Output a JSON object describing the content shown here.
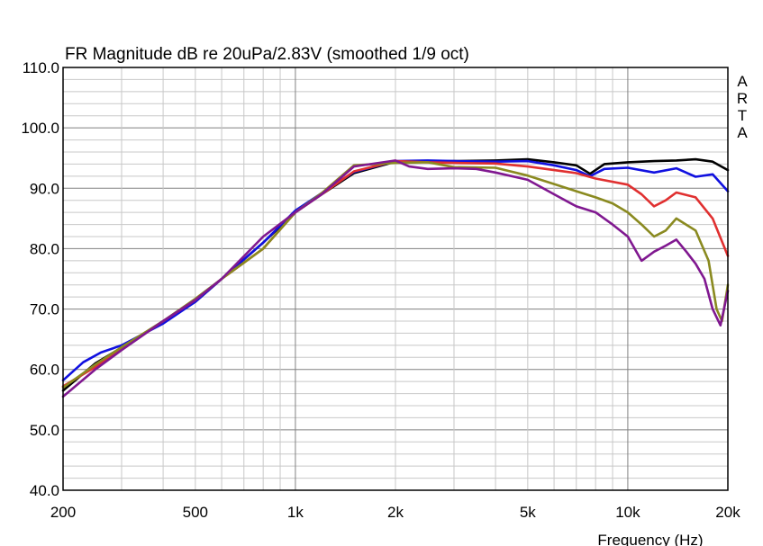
{
  "chart_data": {
    "type": "line",
    "title": "FR Magnitude dB re 20uPa/2.83V (smoothed 1/9 oct)",
    "xlabel": "Frequency (Hz)",
    "ylabel": "",
    "brand": [
      "A",
      "R",
      "T",
      "A"
    ],
    "x_scale": "log",
    "xlim": [
      200,
      20000
    ],
    "ylim": [
      40,
      110
    ],
    "grid": true,
    "legend": "none",
    "x_ticks": [
      {
        "value": 200,
        "label": "200"
      },
      {
        "value": 500,
        "label": "500"
      },
      {
        "value": 1000,
        "label": "1k"
      },
      {
        "value": 2000,
        "label": "2k"
      },
      {
        "value": 5000,
        "label": "5k"
      },
      {
        "value": 10000,
        "label": "10k"
      },
      {
        "value": 20000,
        "label": "20k"
      }
    ],
    "y_ticks": [
      {
        "value": 40,
        "label": "40.0"
      },
      {
        "value": 50,
        "label": "50.0"
      },
      {
        "value": 60,
        "label": "60.0"
      },
      {
        "value": 70,
        "label": "70.0"
      },
      {
        "value": 80,
        "label": "80.0"
      },
      {
        "value": 90,
        "label": "90.0"
      },
      {
        "value": 100,
        "label": "100.0"
      },
      {
        "value": 110,
        "label": "110.0"
      }
    ],
    "series": [
      {
        "color": "#000000",
        "x": [
          200,
          250,
          300,
          400,
          500,
          600,
          800,
          1000,
          1200,
          1500,
          2000,
          2500,
          3000,
          4000,
          5000,
          6000,
          7000,
          7700,
          8500,
          10000,
          12000,
          14000,
          16000,
          18000,
          20000
        ],
        "y": [
          56.5,
          61,
          63.6,
          68,
          71.2,
          75,
          81,
          86,
          89,
          92.5,
          94.4,
          94.4,
          94.5,
          94.6,
          94.8,
          94.3,
          93.8,
          92.4,
          94,
          94.3,
          94.5,
          94.6,
          94.8,
          94.4,
          93
        ]
      },
      {
        "color": "#1010e0",
        "x": [
          200,
          230,
          260,
          300,
          400,
          500,
          600,
          800,
          1000,
          1200,
          1500,
          2000,
          2500,
          3000,
          4000,
          5000,
          6000,
          7000,
          7700,
          8500,
          10000,
          12000,
          14000,
          16000,
          18000,
          20000
        ],
        "y": [
          58.2,
          61.2,
          62.8,
          64,
          67.6,
          71.2,
          75,
          81,
          86.3,
          89.2,
          92.7,
          94.5,
          94.6,
          94.5,
          94.4,
          94.5,
          93.8,
          93,
          92,
          93.2,
          93.4,
          92.6,
          93.3,
          91.9,
          92.3,
          89.5
        ]
      },
      {
        "color": "#e03030",
        "x": [
          200,
          250,
          300,
          400,
          500,
          600,
          800,
          1000,
          1200,
          1500,
          2000,
          2500,
          3000,
          4000,
          5000,
          6000,
          7000,
          8000,
          10000,
          11000,
          12000,
          13000,
          14000,
          16000,
          18000,
          20000
        ],
        "y": [
          57.2,
          60.4,
          63.5,
          68,
          71.5,
          75,
          80,
          86,
          89,
          92.8,
          94.5,
          94.3,
          94.2,
          94.1,
          93.6,
          93,
          92.5,
          91.6,
          90.6,
          89,
          87,
          88,
          89.3,
          88.5,
          85,
          78.8
        ]
      },
      {
        "color": "#8a8a20",
        "x": [
          200,
          250,
          300,
          400,
          500,
          600,
          800,
          1000,
          1200,
          1500,
          2000,
          2500,
          3000,
          4000,
          5000,
          6000,
          7000,
          8000,
          9000,
          10000,
          11000,
          12000,
          13000,
          14000,
          16000,
          17500,
          18500,
          19200,
          20000
        ],
        "y": [
          57,
          60.8,
          63.7,
          68,
          71.7,
          75,
          80,
          86,
          89.2,
          93.8,
          94.2,
          94.3,
          93.5,
          93.4,
          92.1,
          90.7,
          89.5,
          88.5,
          87.5,
          86,
          84,
          82,
          83,
          85,
          83,
          78,
          70,
          68,
          74
        ]
      },
      {
        "color": "#801890",
        "x": [
          200,
          250,
          300,
          400,
          500,
          600,
          800,
          1000,
          1200,
          1500,
          2000,
          2200,
          2500,
          3000,
          3500,
          4000,
          5000,
          6000,
          7000,
          8000,
          9000,
          10000,
          11000,
          12000,
          13000,
          14000,
          15000,
          16000,
          17000,
          18000,
          19000,
          20000
        ],
        "y": [
          55.5,
          60,
          63.2,
          68,
          71.5,
          75,
          82,
          86,
          89,
          93.6,
          94.6,
          93.6,
          93.2,
          93.3,
          93.2,
          92.6,
          91.4,
          89,
          87,
          86,
          84,
          82,
          78,
          79.5,
          80.5,
          81.5,
          79.5,
          77.5,
          75,
          70,
          67.3,
          73
        ]
      }
    ]
  }
}
